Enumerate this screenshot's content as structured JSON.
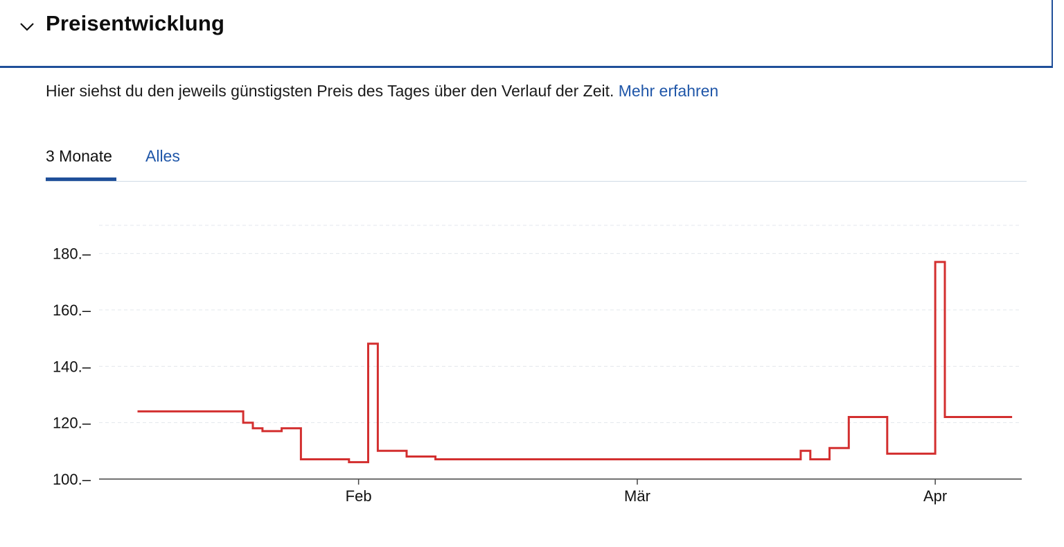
{
  "header": {
    "title": "Preisentwicklung",
    "toggle_icon": "chevron-down-icon"
  },
  "description": {
    "text": "Hier siehst du den jeweils günstigsten Preis des Tages über den Verlauf der Zeit. ",
    "link_label": "Mehr erfahren"
  },
  "tabs": [
    {
      "label": "3 Monate",
      "active": true
    },
    {
      "label": "Alles",
      "active": false
    }
  ],
  "colors": {
    "accent": "#1f4f99",
    "link": "#1f56a8",
    "series": "#d32f2f"
  },
  "chart_data": {
    "type": "line",
    "step": true,
    "ylim": [
      100,
      190
    ],
    "y_ticks": [
      {
        "value": 100,
        "label": "100.–"
      },
      {
        "value": 120,
        "label": "120.–"
      },
      {
        "value": 140,
        "label": "140.–"
      },
      {
        "value": 160,
        "label": "160.–"
      },
      {
        "value": 180,
        "label": "180.–"
      }
    ],
    "xlim": [
      "2024-01-05",
      "2024-04-10"
    ],
    "x_ticks": [
      {
        "value": "2024-02-01",
        "label": "Feb"
      },
      {
        "value": "2024-03-01",
        "label": "Mär"
      },
      {
        "value": "2024-04-01",
        "label": "Apr"
      }
    ],
    "grid": true,
    "series": [
      {
        "points": [
          {
            "date": "2024-01-09",
            "price": 124
          },
          {
            "date": "2024-01-20",
            "price": 120
          },
          {
            "date": "2024-01-21",
            "price": 118
          },
          {
            "date": "2024-01-22",
            "price": 117
          },
          {
            "date": "2024-01-24",
            "price": 118
          },
          {
            "date": "2024-01-26",
            "price": 107
          },
          {
            "date": "2024-01-31",
            "price": 106
          },
          {
            "date": "2024-02-02",
            "price": 148
          },
          {
            "date": "2024-02-03",
            "price": 110
          },
          {
            "date": "2024-02-06",
            "price": 108
          },
          {
            "date": "2024-02-09",
            "price": 107
          },
          {
            "date": "2024-03-18",
            "price": 110
          },
          {
            "date": "2024-03-19",
            "price": 107
          },
          {
            "date": "2024-03-21",
            "price": 111
          },
          {
            "date": "2024-03-23",
            "price": 122
          },
          {
            "date": "2024-03-27",
            "price": 109
          },
          {
            "date": "2024-04-01",
            "price": 177
          },
          {
            "date": "2024-04-02",
            "price": 122
          },
          {
            "date": "2024-04-09",
            "price": 122
          }
        ]
      }
    ]
  }
}
